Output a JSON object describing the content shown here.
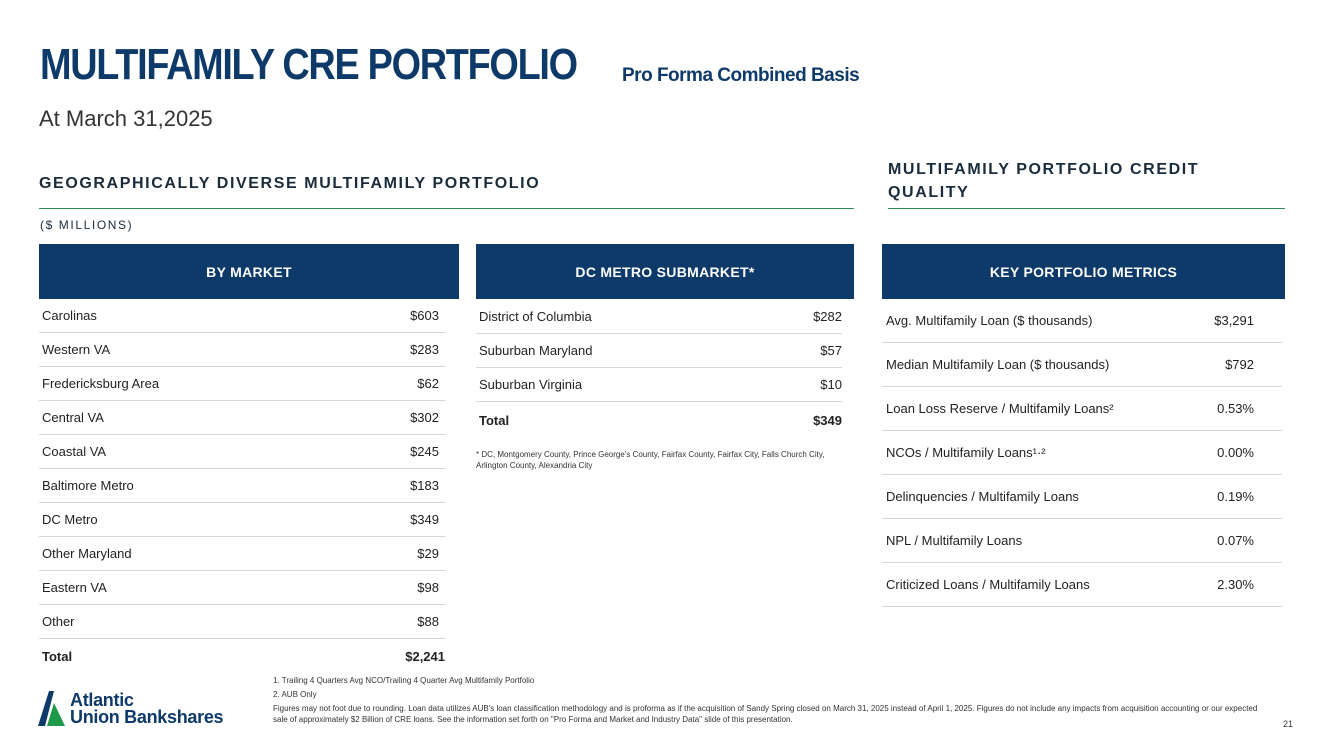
{
  "header": {
    "title": "MULTIFAMILY CRE PORTFOLIO",
    "subtitle": "Pro Forma Combined Basis",
    "date": "At March 31,2025"
  },
  "left_section": {
    "heading": "GEOGRAPHICALLY DIVERSE MULTIFAMILY PORTFOLIO",
    "units": "($ MILLIONS)"
  },
  "right_section": {
    "heading_line1": "MULTIFAMILY PORTFOLIO CREDIT",
    "heading_line2": "QUALITY"
  },
  "by_market": {
    "header": "BY MARKET",
    "rows": [
      {
        "label": "Carolinas",
        "value": "$603"
      },
      {
        "label": "Western VA",
        "value": "$283"
      },
      {
        "label": "Fredericksburg Area",
        "value": "$62"
      },
      {
        "label": "Central VA",
        "value": "$302"
      },
      {
        "label": "Coastal VA",
        "value": "$245"
      },
      {
        "label": "Baltimore Metro",
        "value": "$183"
      },
      {
        "label": "DC Metro",
        "value": "$349"
      },
      {
        "label": "Other Maryland",
        "value": "$29"
      },
      {
        "label": "Eastern VA",
        "value": "$98"
      },
      {
        "label": "Other",
        "value": "$88"
      }
    ],
    "total_label": "Total",
    "total_value": "$2,241"
  },
  "dc_metro": {
    "header": "DC METRO SUBMARKET*",
    "rows": [
      {
        "label": "District of Columbia",
        "value": "$282"
      },
      {
        "label": "Suburban Maryland",
        "value": "$57"
      },
      {
        "label": "Suburban Virginia",
        "value": "$10"
      }
    ],
    "total_label": "Total",
    "total_value": "$349",
    "note": "* DC, Montgomery County, Prince George's County, Fairfax County, Fairfax City, Falls Church City, Arlington County, Alexandria City"
  },
  "key_metrics": {
    "header": "KEY PORTFOLIO METRICS",
    "rows": [
      {
        "label": "Avg. Multifamily Loan ($ thousands)",
        "value": "$3,291"
      },
      {
        "label": "Median Multifamily Loan ($ thousands)",
        "value": "$792"
      },
      {
        "label": "Loan Loss Reserve / Multifamily Loans²",
        "value": "0.53%"
      },
      {
        "label": "NCOs / Multifamily Loans¹·²",
        "value": "0.00%"
      },
      {
        "label": "Delinquencies / Multifamily Loans",
        "value": "0.19%"
      },
      {
        "label": "NPL / Multifamily Loans",
        "value": "0.07%"
      },
      {
        "label": "Criticized Loans / Multifamily Loans",
        "value": "2.30%"
      }
    ]
  },
  "footnotes": {
    "f1": "1. Trailing 4 Quarters Avg NCO/Trailing 4 Quarter Avg Multifamily Portfolio",
    "f2": "2. AUB Only",
    "f3": "Figures may not foot due to rounding. Loan data utilizes AUB's loan classification methodology and is proforma as if the acquisition of Sandy Spring closed on March 31, 2025 instead of April 1, 2025. Figures do not include any impacts from acquisition accounting or our expected sale of approximately $2 Billion of CRE loans. See the information set forth on \"Pro Forma and Market and Industry Data\" slide of this presentation."
  },
  "logo": {
    "line1": "Atlantic",
    "line2": "Union Bankshares"
  },
  "page_number": "21",
  "colors": {
    "navy": "#0e3a6a",
    "green_rule": "#2e8b5a",
    "logo_green": "#1f9a4a"
  }
}
